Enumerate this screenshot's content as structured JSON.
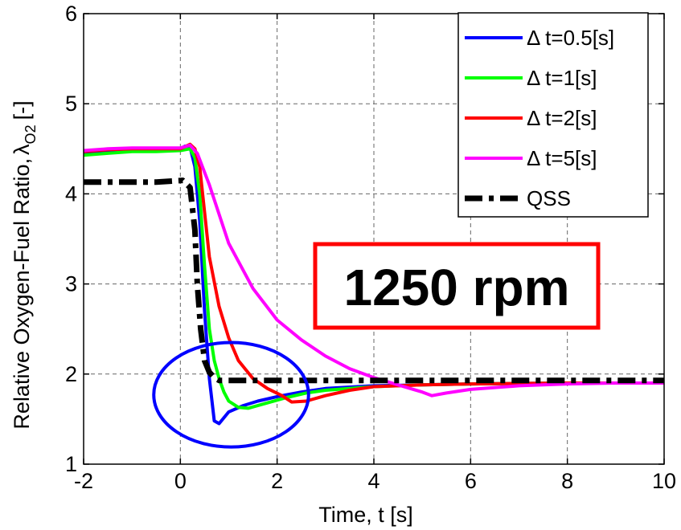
{
  "chart_data": {
    "type": "line",
    "xlabel": "Time, t [s]",
    "ylabel": "Relative Oxygen-Fuel Ratio,",
    "ylabel_symbol": "λ",
    "ylabel_subscript": "O2",
    "ylabel_unit": "[-]",
    "xlim": [
      -2,
      10
    ],
    "ylim": [
      1,
      6
    ],
    "xticks": [
      "-2",
      "0",
      "2",
      "4",
      "6",
      "8",
      "10"
    ],
    "yticks": [
      "1",
      "2",
      "3",
      "4",
      "5",
      "6"
    ],
    "grid": true,
    "legend_position": "top-right",
    "annotation": "1250 rpm",
    "annotation_color": "#ff0000",
    "highlight": {
      "shape": "ellipse",
      "color": "#0000ff",
      "center": [
        1.05,
        1.77
      ],
      "rx": 1.6,
      "ry": 0.58
    },
    "series": [
      {
        "name": "Δ t=0.5[s]",
        "color": "#0000ff",
        "style": "solid",
        "x": [
          -2,
          -1.5,
          -1,
          -0.5,
          0,
          0.1,
          0.2,
          0.3,
          0.4,
          0.5,
          0.6,
          0.7,
          0.8,
          1.0,
          1.3,
          1.6,
          2.0,
          2.5,
          3.0,
          4.0,
          5.0,
          6.0,
          8.0,
          10.0
        ],
        "values": [
          4.46,
          4.48,
          4.49,
          4.5,
          4.5,
          4.53,
          4.52,
          4.3,
          3.7,
          2.7,
          1.95,
          1.48,
          1.45,
          1.58,
          1.65,
          1.7,
          1.75,
          1.8,
          1.84,
          1.87,
          1.88,
          1.89,
          1.9,
          1.9
        ]
      },
      {
        "name": "Δ t=1[s]",
        "color": "#00ff00",
        "style": "solid",
        "x": [
          -2,
          -1.5,
          -1,
          -0.5,
          0,
          0.2,
          0.3,
          0.4,
          0.5,
          0.6,
          0.7,
          0.8,
          0.9,
          1.0,
          1.2,
          1.4,
          1.8,
          2.2,
          2.6,
          3.0,
          4.0,
          5.0,
          6.0,
          8.0,
          10.0
        ],
        "values": [
          4.43,
          4.45,
          4.47,
          4.47,
          4.48,
          4.5,
          4.4,
          4.0,
          3.2,
          2.5,
          2.15,
          1.95,
          1.8,
          1.7,
          1.63,
          1.62,
          1.68,
          1.74,
          1.79,
          1.82,
          1.86,
          1.88,
          1.89,
          1.9,
          1.9
        ]
      },
      {
        "name": "Δ t=2[s]",
        "color": "#ff0000",
        "style": "solid",
        "x": [
          -2,
          -1.5,
          -1,
          -0.5,
          0,
          0.2,
          0.3,
          0.4,
          0.5,
          0.6,
          0.8,
          1.0,
          1.2,
          1.5,
          1.8,
          2.1,
          2.3,
          2.6,
          3.0,
          3.5,
          4.0,
          5.0,
          6.0,
          8.0,
          10.0
        ],
        "values": [
          4.47,
          4.49,
          4.5,
          4.5,
          4.5,
          4.55,
          4.5,
          4.3,
          3.8,
          3.3,
          2.75,
          2.4,
          2.15,
          1.95,
          1.84,
          1.76,
          1.69,
          1.7,
          1.76,
          1.82,
          1.86,
          1.88,
          1.89,
          1.9,
          1.9
        ]
      },
      {
        "name": "Δ t=5[s]",
        "color": "#ff00ff",
        "style": "solid",
        "x": [
          -2,
          -1.5,
          -1,
          -0.5,
          0,
          0.2,
          0.35,
          0.6,
          1.0,
          1.5,
          2.0,
          2.5,
          3.0,
          3.5,
          4.0,
          4.5,
          5.0,
          5.2,
          5.5,
          6.0,
          7.0,
          8.0,
          9.0,
          10.0
        ],
        "values": [
          4.48,
          4.5,
          4.51,
          4.51,
          4.51,
          4.54,
          4.45,
          4.1,
          3.45,
          2.95,
          2.6,
          2.38,
          2.2,
          2.06,
          1.96,
          1.88,
          1.8,
          1.76,
          1.79,
          1.83,
          1.87,
          1.89,
          1.9,
          1.9
        ]
      },
      {
        "name": "QSS",
        "color": "#000000",
        "style": "dashdot",
        "x": [
          -2,
          -0.5,
          0.05,
          0.2,
          0.3,
          0.35,
          0.42,
          0.5,
          0.6,
          0.7,
          0.8,
          1.0,
          10.0
        ],
        "values": [
          4.13,
          4.13,
          4.15,
          4.07,
          3.6,
          3.0,
          2.5,
          2.15,
          2.02,
          1.96,
          1.93,
          1.93,
          1.93
        ]
      }
    ]
  }
}
